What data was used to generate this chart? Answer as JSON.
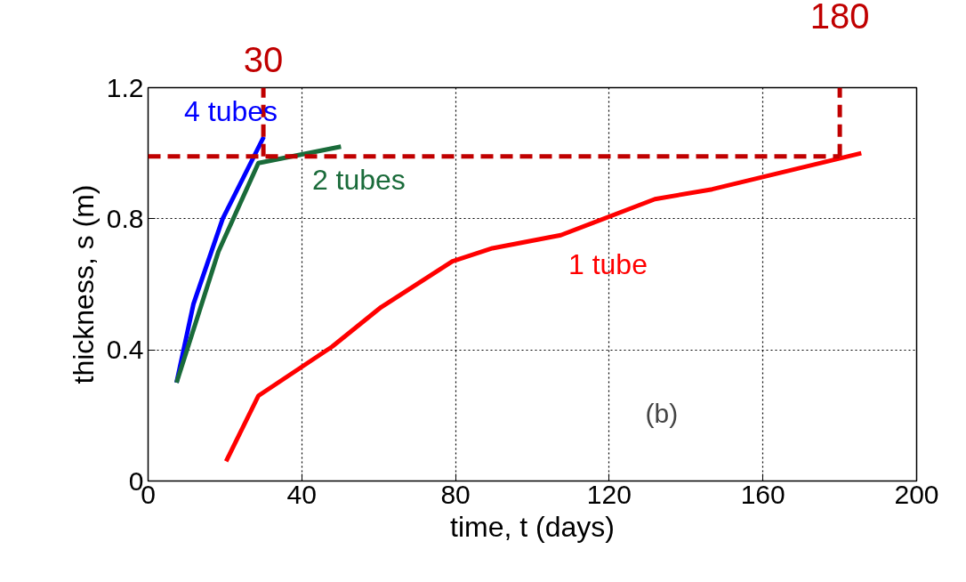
{
  "chart_data": {
    "type": "line",
    "xlabel": "time, t (days)",
    "ylabel": "thickness, s (m)",
    "xlim": [
      0,
      200
    ],
    "ylim": [
      0,
      1.2
    ],
    "xticks": [
      0,
      40,
      80,
      120,
      160,
      200
    ],
    "yticks": [
      0,
      0.4,
      0.8,
      1.2
    ],
    "grid": true,
    "line_style": "solid",
    "marker": "none",
    "series": [
      {
        "name": "4 tubes",
        "color": "#0000ff",
        "x": [
          7.4,
          11.8,
          19.4,
          30.1
        ],
        "values": [
          0.3,
          0.54,
          0.8,
          1.05
        ]
      },
      {
        "name": "2 tubes",
        "color": "#1a6b3a",
        "x": [
          7.4,
          18.3,
          28.7,
          50.2
        ],
        "values": [
          0.3,
          0.7,
          0.97,
          1.02
        ]
      },
      {
        "name": "1 tube",
        "color": "#ff0000",
        "x": [
          20.3,
          28.7,
          47.9,
          60.6,
          79.2,
          89.6,
          107.4,
          131.9,
          146.8,
          185.6
        ],
        "values": [
          0.06,
          0.26,
          0.41,
          0.53,
          0.67,
          0.71,
          0.75,
          0.86,
          0.89,
          1.0
        ]
      }
    ],
    "ref_lines": [
      {
        "axis": "y",
        "value": 0.99,
        "label": null,
        "color": "#c00000",
        "line_style": "dashed"
      },
      {
        "axis": "x",
        "value": 30,
        "label": "30",
        "color": "#c00000",
        "line_style": "dashed"
      },
      {
        "axis": "x",
        "value": 180,
        "label": "180",
        "color": "#c00000",
        "line_style": "dashed"
      }
    ],
    "annotations": [
      "(b)"
    ]
  }
}
